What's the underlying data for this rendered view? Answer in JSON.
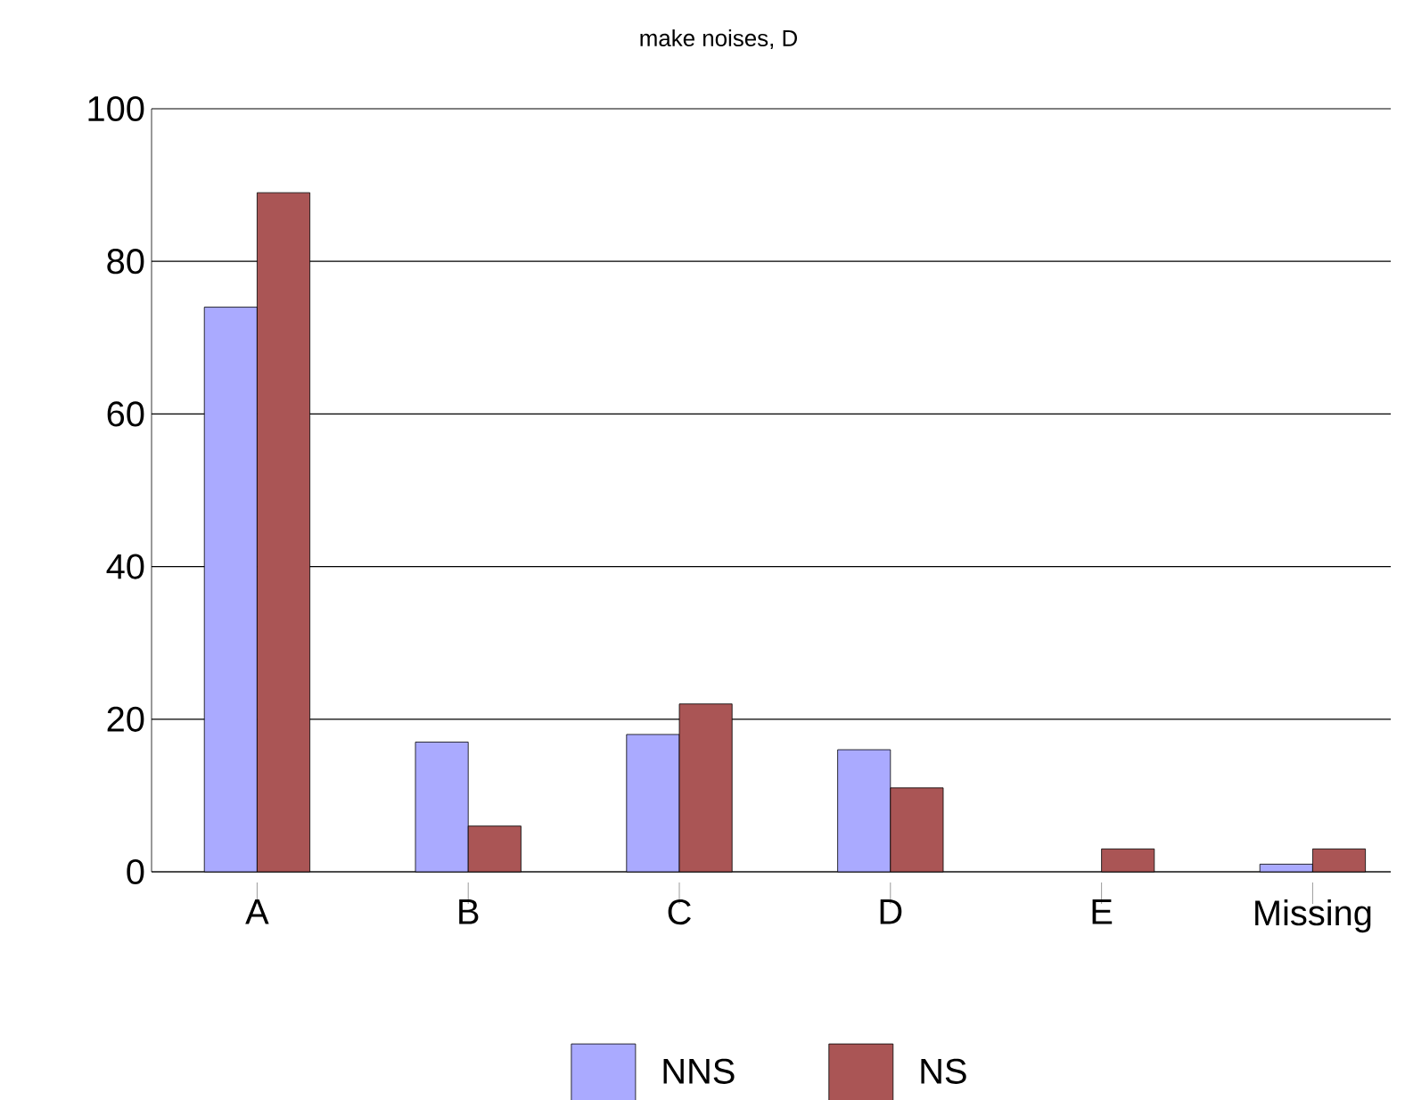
{
  "chart_data": {
    "type": "bar",
    "title": "make noises, D",
    "categories": [
      "A",
      "B",
      "C",
      "D",
      "E",
      "Missing"
    ],
    "series": [
      {
        "name": "NNS",
        "color": "#aaaaff",
        "values": [
          74,
          17,
          18,
          16,
          null,
          1
        ]
      },
      {
        "name": "NS",
        "color": "#aa5555",
        "values": [
          89,
          6,
          22,
          11,
          3,
          3
        ]
      }
    ],
    "ylim": [
      0,
      100
    ],
    "yticks": [
      0,
      20,
      40,
      60,
      80,
      100
    ],
    "grid": "y",
    "legend": "bottom"
  }
}
